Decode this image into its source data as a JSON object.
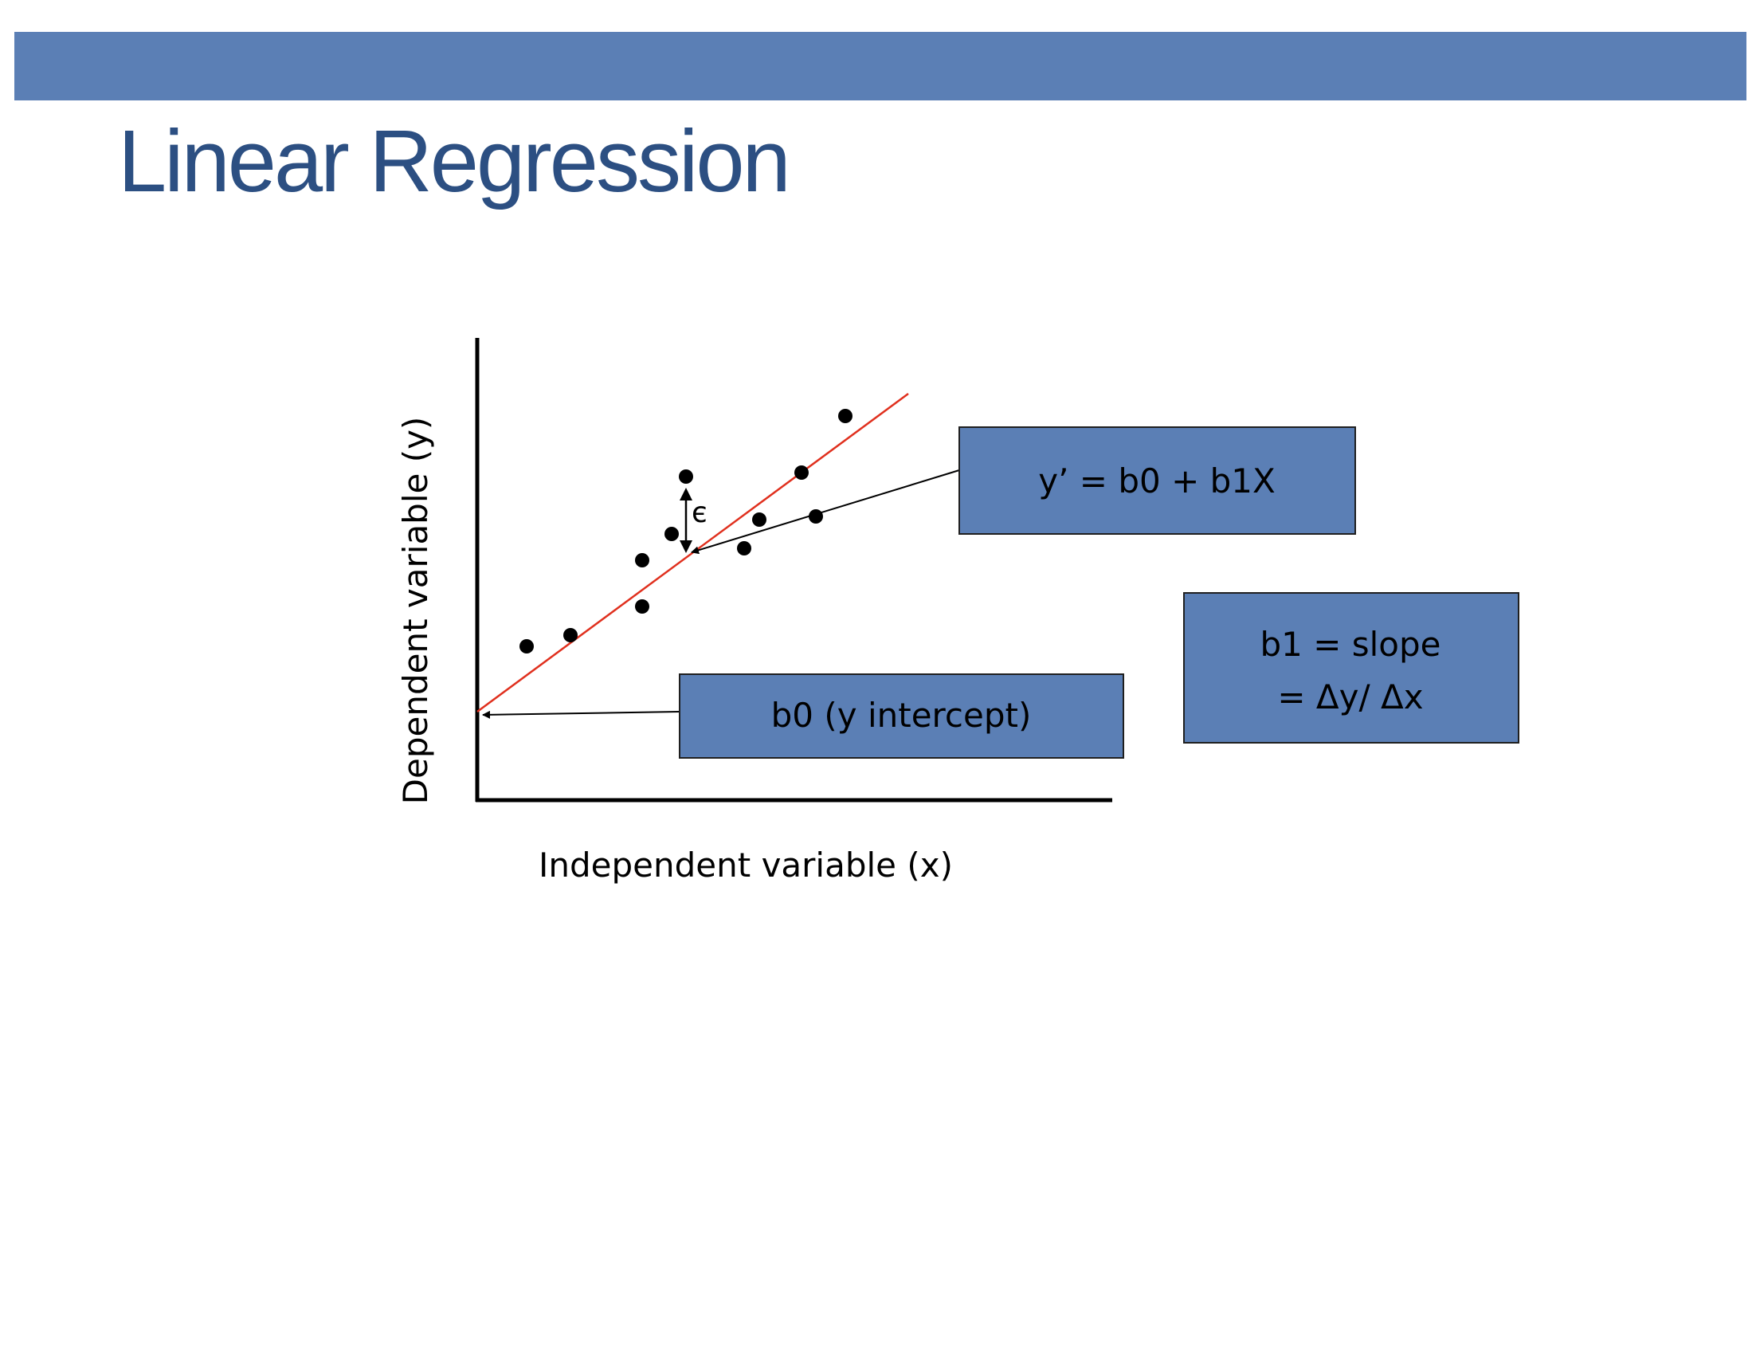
{
  "title": "Linear Regression",
  "colors": {
    "band": "#5b7fb5",
    "title": "#2c4f82",
    "box_fill": "#5b7fb5",
    "regression_line": "#e0301e",
    "axis": "#000000"
  },
  "axes": {
    "x_label": "Independent variable (x)",
    "y_label": "Dependent variable (y)"
  },
  "residual_symbol": "є",
  "boxes": {
    "equation": "y’ = b0 + b1X",
    "intercept": "b0 (y intercept)",
    "slope_line1": "b1 = slope",
    "slope_line2": "= Δy/ Δx"
  }
}
